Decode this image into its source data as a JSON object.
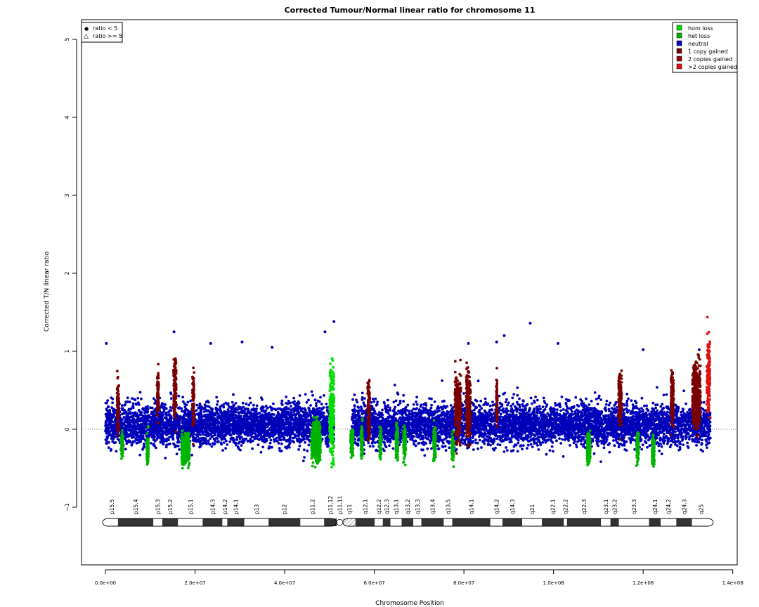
{
  "chart_data": {
    "type": "scatter",
    "title": "Corrected Tumour/Normal linear ratio for chromosome  11",
    "xlabel": "Chromosome Position",
    "ylabel": "Corrected T/N linear ratio",
    "xlim": [
      0,
      140000000
    ],
    "ylim": [
      -1.8,
      5.2
    ],
    "x_ticks": [
      0,
      20000000,
      40000000,
      60000000,
      80000000,
      100000000,
      120000000,
      140000000
    ],
    "x_tick_labels": [
      "0.0e+00",
      "2.0e+07",
      "4.0e+07",
      "6.0e+07",
      "8.0e+07",
      "1.0e+08",
      "1.2e+08",
      "1.4e+08"
    ],
    "y_ticks": [
      -1,
      0,
      1,
      2,
      3,
      4,
      5
    ],
    "y_tick_labels": [
      "−1",
      "0",
      "1",
      "2",
      "3",
      "4",
      "5"
    ],
    "reference_line_y": 0,
    "colors": {
      "hom_loss": "#00e000",
      "het_loss": "#00b400",
      "neutral": "#0000bb",
      "gain1": "#7a0000",
      "gain2": "#9a0000",
      "gain_more": "#dd1111"
    },
    "shape_legend": {
      "position": "top-left",
      "entries": [
        {
          "symbol": "●",
          "label": "ratio < 5"
        },
        {
          "symbol": "△",
          "label": "ratio >= 5"
        }
      ]
    },
    "state_legend": {
      "position": "top-right",
      "entries": [
        {
          "label": "hom loss",
          "color": "#00e000"
        },
        {
          "label": "het loss",
          "color": "#00b400"
        },
        {
          "label": "neutral",
          "color": "#0000bb"
        },
        {
          "label": "1 copy gained",
          "color": "#7a0000"
        },
        {
          "label": "2 copies gained",
          "color": "#9a0000"
        },
        {
          "label": ">2 copies gained",
          "color": "#dd1111"
        }
      ]
    },
    "segments": [
      {
        "start": 0,
        "end": 51000000,
        "low": -0.5,
        "high": 0.7,
        "state": "neutral"
      },
      {
        "start": 55000000,
        "end": 135000000,
        "low": -0.5,
        "high": 0.7,
        "state": "neutral"
      }
    ],
    "gain_regions": [
      {
        "start": 2600000,
        "end": 3000000,
        "low": -0.3,
        "high": 0.85,
        "state": "gain1"
      },
      {
        "start": 11500000,
        "end": 11900000,
        "low": -0.1,
        "high": 0.9,
        "state": "gain1"
      },
      {
        "start": 15200000,
        "end": 15800000,
        "low": -0.2,
        "high": 1.25,
        "state": "gain1"
      },
      {
        "start": 19400000,
        "end": 19800000,
        "low": -0.2,
        "high": 1.0,
        "state": "gain1"
      },
      {
        "start": 58500000,
        "end": 59000000,
        "low": -0.4,
        "high": 0.9,
        "state": "gain1"
      },
      {
        "start": 78000000,
        "end": 79300000,
        "low": -0.4,
        "high": 1.0,
        "state": "gain1"
      },
      {
        "start": 80500000,
        "end": 81500000,
        "low": -0.4,
        "high": 1.05,
        "state": "gain1"
      },
      {
        "start": 87200000,
        "end": 87500000,
        "low": -0.2,
        "high": 0.9,
        "state": "gain1"
      },
      {
        "start": 114500000,
        "end": 115200000,
        "low": -0.2,
        "high": 0.9,
        "state": "gain1"
      },
      {
        "start": 126200000,
        "end": 126800000,
        "low": -0.2,
        "high": 1.0,
        "state": "gain1"
      },
      {
        "start": 131000000,
        "end": 132800000,
        "low": -0.2,
        "high": 1.05,
        "state": "gain1"
      },
      {
        "start": 134200000,
        "end": 134900000,
        "low": -0.1,
        "high": 1.5,
        "state": "gain_more"
      }
    ],
    "loss_regions": [
      {
        "start": 3500000,
        "end": 3900000,
        "low": -0.5,
        "high": 0.1,
        "state": "het_loss"
      },
      {
        "start": 9200000,
        "end": 9600000,
        "low": -0.65,
        "high": 0.1,
        "state": "het_loss"
      },
      {
        "start": 17000000,
        "end": 18800000,
        "low": -0.6,
        "high": 0.1,
        "state": "het_loss"
      },
      {
        "start": 46000000,
        "end": 48000000,
        "low": -0.65,
        "high": 0.3,
        "state": "het_loss"
      },
      {
        "start": 50000000,
        "end": 51000000,
        "low": -0.85,
        "high": 1.25,
        "state": "hom_loss"
      },
      {
        "start": 54700000,
        "end": 55300000,
        "low": -0.5,
        "high": 0.2,
        "state": "het_loss"
      },
      {
        "start": 57000000,
        "end": 57400000,
        "low": -0.55,
        "high": 0.2,
        "state": "het_loss"
      },
      {
        "start": 61200000,
        "end": 61600000,
        "low": -0.55,
        "high": 0.2,
        "state": "het_loss"
      },
      {
        "start": 64800000,
        "end": 65300000,
        "low": -0.55,
        "high": 0.2,
        "state": "het_loss"
      },
      {
        "start": 66500000,
        "end": 67000000,
        "low": -0.55,
        "high": 0.2,
        "state": "het_loss"
      },
      {
        "start": 73200000,
        "end": 73700000,
        "low": -0.55,
        "high": 0.2,
        "state": "het_loss"
      },
      {
        "start": 77300000,
        "end": 77700000,
        "low": -0.6,
        "high": 0.1,
        "state": "het_loss"
      },
      {
        "start": 107500000,
        "end": 108200000,
        "low": -0.6,
        "high": 0.1,
        "state": "het_loss"
      },
      {
        "start": 118500000,
        "end": 119000000,
        "low": -0.55,
        "high": 0.1,
        "state": "het_loss"
      },
      {
        "start": 122000000,
        "end": 122500000,
        "low": -0.65,
        "high": 0.1,
        "state": "het_loss"
      }
    ],
    "outliers": [
      {
        "x": 200000,
        "y": 1.1
      },
      {
        "x": 15300000,
        "y": 1.25
      },
      {
        "x": 23500000,
        "y": 1.1
      },
      {
        "x": 30500000,
        "y": 1.12
      },
      {
        "x": 37200000,
        "y": 1.05
      },
      {
        "x": 49000000,
        "y": 1.25
      },
      {
        "x": 51000000,
        "y": 1.38
      },
      {
        "x": 81000000,
        "y": 1.1
      },
      {
        "x": 87300000,
        "y": 1.12
      },
      {
        "x": 89000000,
        "y": 1.2
      },
      {
        "x": 94800000,
        "y": 1.36
      },
      {
        "x": 101000000,
        "y": 1.1
      },
      {
        "x": 120000000,
        "y": 1.02
      },
      {
        "x": 132500000,
        "y": 1.02
      }
    ],
    "ideogram": {
      "centromere": 53000000,
      "bands": [
        {
          "name": "p15.5",
          "start": 0,
          "end": 2800000,
          "stain": "gneg"
        },
        {
          "name": "p15.4",
          "start": 2800000,
          "end": 10700000,
          "stain": "gpos"
        },
        {
          "name": "p15.3",
          "start": 10700000,
          "end": 12700000,
          "stain": "gneg"
        },
        {
          "name": "p15.2",
          "start": 12700000,
          "end": 16200000,
          "stain": "gpos"
        },
        {
          "name": "p15.1",
          "start": 16200000,
          "end": 21700000,
          "stain": "gneg"
        },
        {
          "name": "p14.3",
          "start": 21700000,
          "end": 26100000,
          "stain": "gpos"
        },
        {
          "name": "p14.2",
          "start": 26100000,
          "end": 27200000,
          "stain": "gneg"
        },
        {
          "name": "p14.1",
          "start": 27200000,
          "end": 31000000,
          "stain": "gpos"
        },
        {
          "name": "p13",
          "start": 31000000,
          "end": 36400000,
          "stain": "gneg"
        },
        {
          "name": "p12",
          "start": 36400000,
          "end": 43500000,
          "stain": "gpos"
        },
        {
          "name": "p11.2",
          "start": 43500000,
          "end": 48800000,
          "stain": "gneg"
        },
        {
          "name": "p11.12",
          "start": 48800000,
          "end": 51600000,
          "stain": "gpos"
        },
        {
          "name": "p11.11",
          "start": 51600000,
          "end": 53000000,
          "stain": "acen"
        },
        {
          "name": "q11",
          "start": 53000000,
          "end": 55800000,
          "stain": "gvar"
        },
        {
          "name": "q12.1",
          "start": 55800000,
          "end": 60100000,
          "stain": "gpos"
        },
        {
          "name": "q12.2",
          "start": 60100000,
          "end": 61900000,
          "stain": "gneg"
        },
        {
          "name": "q12.3",
          "start": 61900000,
          "end": 63600000,
          "stain": "gpos"
        },
        {
          "name": "q13.1",
          "start": 63600000,
          "end": 66100000,
          "stain": "gneg"
        },
        {
          "name": "q13.2",
          "start": 66100000,
          "end": 68700000,
          "stain": "gpos"
        },
        {
          "name": "q13.3",
          "start": 68700000,
          "end": 70500000,
          "stain": "gneg"
        },
        {
          "name": "q13.4",
          "start": 70500000,
          "end": 75500000,
          "stain": "gpos"
        },
        {
          "name": "q13.5",
          "start": 75500000,
          "end": 77400000,
          "stain": "gneg"
        },
        {
          "name": "q14.1",
          "start": 77400000,
          "end": 85900000,
          "stain": "gpos"
        },
        {
          "name": "q14.2",
          "start": 85900000,
          "end": 88600000,
          "stain": "gneg"
        },
        {
          "name": "q14.3",
          "start": 88600000,
          "end": 93000000,
          "stain": "gpos"
        },
        {
          "name": "q21",
          "start": 93000000,
          "end": 97400000,
          "stain": "gneg"
        },
        {
          "name": "q22.1",
          "start": 97400000,
          "end": 102300000,
          "stain": "gpos"
        },
        {
          "name": "q22.2",
          "start": 102300000,
          "end": 103000000,
          "stain": "gneg"
        },
        {
          "name": "q22.3",
          "start": 103000000,
          "end": 110600000,
          "stain": "gpos"
        },
        {
          "name": "q23.1",
          "start": 110600000,
          "end": 112700000,
          "stain": "gneg"
        },
        {
          "name": "q23.2",
          "start": 112700000,
          "end": 114600000,
          "stain": "gpos"
        },
        {
          "name": "q23.3",
          "start": 114600000,
          "end": 121300000,
          "stain": "gneg"
        },
        {
          "name": "q24.1",
          "start": 121300000,
          "end": 123900000,
          "stain": "gpos"
        },
        {
          "name": "q24.2",
          "start": 123900000,
          "end": 127400000,
          "stain": "gneg"
        },
        {
          "name": "q24.3",
          "start": 127400000,
          "end": 130900000,
          "stain": "gpos"
        },
        {
          "name": "q25",
          "start": 130900000,
          "end": 135000000,
          "stain": "gneg"
        }
      ]
    }
  }
}
